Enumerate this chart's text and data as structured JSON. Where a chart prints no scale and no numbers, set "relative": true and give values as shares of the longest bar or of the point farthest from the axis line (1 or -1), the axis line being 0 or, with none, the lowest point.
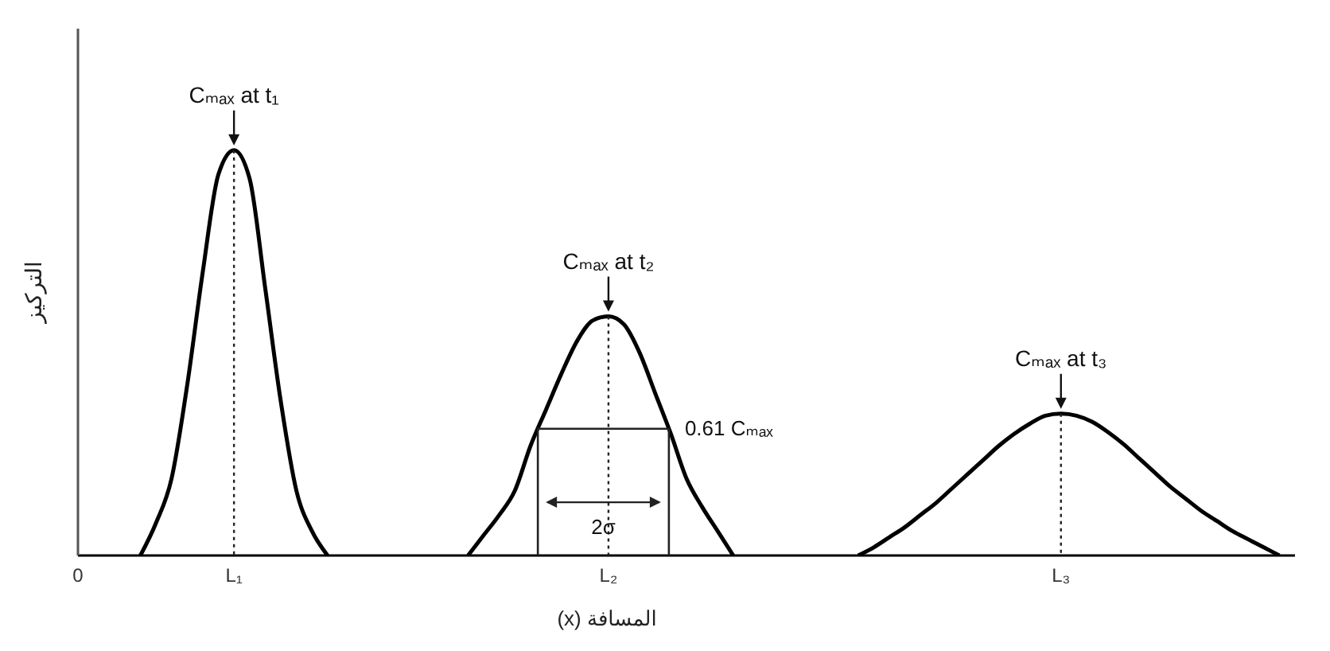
{
  "chart_data": {
    "type": "line",
    "relative": true,
    "xlabel": "المسافة (x)",
    "ylabel": "التركيز",
    "categories": [
      "0",
      null,
      null,
      null,
      null,
      null,
      null,
      null,
      null,
      null,
      "L₁",
      null,
      null,
      null,
      null,
      null,
      null,
      null,
      null,
      null,
      null,
      null,
      null,
      null,
      null,
      null,
      null,
      null,
      null,
      null,
      null,
      null,
      null,
      null,
      "L₂",
      null,
      null,
      null,
      null,
      null,
      null,
      null,
      null,
      null,
      null,
      null,
      null,
      null,
      null,
      null,
      null,
      null,
      null,
      null,
      null,
      null,
      null,
      null,
      null,
      null,
      null,
      null,
      null,
      "L₃",
      null,
      null,
      null,
      null,
      null,
      null,
      null,
      null,
      null,
      null,
      null,
      null,
      null,
      null,
      null
    ],
    "series": [
      {
        "color": "#000000",
        "values": [
          null,
          null,
          null,
          null,
          0,
          0.08,
          0.19,
          0.42,
          0.7,
          0.94,
          1,
          0.93,
          0.66,
          0.38,
          0.16,
          0.06,
          0,
          null,
          null,
          null,
          null,
          null,
          null,
          null,
          null,
          null,
          null,
          null,
          null,
          null,
          null,
          null,
          null,
          null,
          null,
          null,
          null,
          null,
          null,
          null,
          null,
          null,
          null,
          null,
          null,
          null,
          null,
          null,
          null,
          null,
          null,
          null,
          null,
          null,
          null,
          null,
          null,
          null,
          null,
          null,
          null,
          null,
          null,
          null,
          null,
          null,
          null,
          null,
          null,
          null,
          null,
          null,
          null,
          null,
          null,
          null,
          null,
          null,
          null
        ]
      },
      {
        "color": "#000000",
        "values": [
          null,
          null,
          null,
          null,
          null,
          null,
          null,
          null,
          null,
          null,
          null,
          null,
          null,
          null,
          null,
          null,
          null,
          null,
          null,
          null,
          null,
          null,
          null,
          null,
          null,
          0,
          0.05,
          0.1,
          0.16,
          0.27,
          0.36,
          0.45,
          0.53,
          0.58,
          0.59,
          0.57,
          0.5,
          0.4,
          0.3,
          0.19,
          0.12,
          0.06,
          0,
          null,
          null,
          null,
          null,
          null,
          null,
          null,
          null,
          null,
          null,
          null,
          null,
          null,
          null,
          null,
          null,
          null,
          null,
          null,
          null,
          null,
          null,
          null,
          null,
          null,
          null,
          null,
          null,
          null,
          null,
          null,
          null,
          null,
          null,
          null,
          null
        ]
      },
      {
        "color": "#000000",
        "values": [
          null,
          null,
          null,
          null,
          null,
          null,
          null,
          null,
          null,
          null,
          null,
          null,
          null,
          null,
          null,
          null,
          null,
          null,
          null,
          null,
          null,
          null,
          null,
          null,
          null,
          null,
          null,
          null,
          null,
          null,
          null,
          null,
          null,
          null,
          null,
          null,
          null,
          null,
          null,
          null,
          null,
          null,
          null,
          null,
          null,
          null,
          null,
          null,
          null,
          null,
          0,
          0.02,
          0.045,
          0.07,
          0.1,
          0.13,
          0.165,
          0.2,
          0.235,
          0.27,
          0.3,
          0.325,
          0.345,
          0.35,
          0.345,
          0.33,
          0.305,
          0.275,
          0.24,
          0.205,
          0.17,
          0.14,
          0.11,
          0.085,
          0.06,
          0.04,
          0.02,
          0,
          null
        ]
      }
    ],
    "annotations": [
      {
        "text": "Cₘₐₓ at t₁",
        "x": "L₁",
        "y": 1
      },
      {
        "text": "Cₘₐₓ at t₂",
        "x": "L₂",
        "y": 0.59
      },
      {
        "text": "Cₘₐₓ at t₃",
        "x": "L₃",
        "y": 0.35
      },
      "0.61 Cₘₐₓ",
      "2σ"
    ],
    "ref_lines": [
      {
        "axis": "x",
        "value": "L₁",
        "line_style": "dotted",
        "color": "#222222"
      },
      {
        "axis": "x",
        "value": "L₂",
        "line_style": "dotted",
        "color": "#222222"
      },
      {
        "axis": "x",
        "value": "L₃",
        "line_style": "dotted",
        "color": "#222222"
      }
    ],
    "grid": false,
    "legend": false,
    "marker": "none",
    "line_style": "solid"
  }
}
